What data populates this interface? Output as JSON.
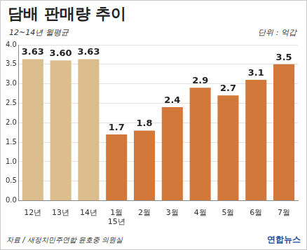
{
  "chart_data": {
    "type": "bar",
    "title": "담배 판매량 추이",
    "subtitle": "12~14년 월평균",
    "unit": "단위 : 억갑",
    "source": "자료 / 새정치민주연합 윤호중 의원실",
    "credit": "연합뉴스",
    "categories": [
      "12년",
      "13년",
      "14년",
      [
        "1월",
        "15년"
      ],
      "2월",
      "3월",
      "4월",
      "5월",
      "6월",
      "7월"
    ],
    "values": [
      3.63,
      3.6,
      3.63,
      1.7,
      1.8,
      2.4,
      2.9,
      2.7,
      3.1,
      3.5
    ],
    "value_labels": [
      "3.63",
      "3.60",
      "3.63",
      "1.7",
      "1.8",
      "2.4",
      "2.9",
      "2.7",
      "3.1",
      "3.5"
    ],
    "colors": [
      "#dcbd8e",
      "#dcbd8e",
      "#dcbd8e",
      "#d2783a",
      "#d2783a",
      "#d2783a",
      "#d2783a",
      "#d2783a",
      "#d2783a",
      "#d2783a"
    ],
    "ylim": [
      0,
      4
    ],
    "yticks": [
      {
        "value": 0,
        "label": "0.0"
      },
      {
        "value": 0.5,
        "label": "0.5"
      },
      {
        "value": 1,
        "label": "1.0"
      },
      {
        "value": 1.5,
        "label": "1.5"
      },
      {
        "value": 2,
        "label": "2.0"
      },
      {
        "value": 2.5,
        "label": "2.5"
      },
      {
        "value": 3,
        "label": "3.0"
      },
      {
        "value": 3.5,
        "label": "3.5"
      },
      {
        "value": 4,
        "label": "4.0"
      }
    ],
    "grid": true,
    "data_labels": true
  }
}
